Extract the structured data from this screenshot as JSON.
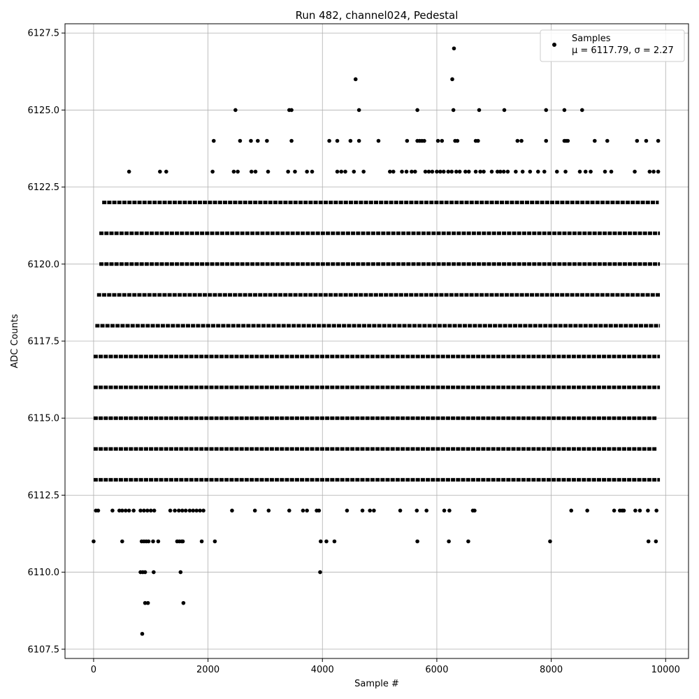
{
  "chart_data": {
    "type": "scatter",
    "title": "Run 482, channel024, Pedestal",
    "xlabel": "Sample #",
    "ylabel": "ADC Counts",
    "xlim": [
      -500,
      10400
    ],
    "ylim": [
      6107.2,
      6127.8
    ],
    "x_ticks": [
      0,
      2000,
      4000,
      6000,
      8000,
      10000
    ],
    "y_ticks": [
      6107.5,
      6110.0,
      6112.5,
      6115.0,
      6117.5,
      6120.0,
      6122.5,
      6125.0,
      6127.5
    ],
    "x_tick_labels": [
      "0",
      "2000",
      "4000",
      "6000",
      "8000",
      "10000"
    ],
    "y_tick_labels": [
      "6107.5",
      "6110.0",
      "6112.5",
      "6115.0",
      "6117.5",
      "6120.0",
      "6122.5",
      "6125.0",
      "6127.5"
    ],
    "grid": true,
    "legend_position": "top-right",
    "marker_color": "#000000",
    "series": [
      {
        "name": "Samples",
        "stats_label": "μ = 6117.79, σ = 2.27",
        "bands": [
          {
            "y": 6116,
            "x_range": [
              0,
              9900
            ]
          },
          {
            "y": 6117,
            "x_range": [
              0,
              9900
            ]
          },
          {
            "y": 6118,
            "x_range": [
              30,
              9900
            ]
          },
          {
            "y": 6119,
            "x_range": [
              60,
              9900
            ]
          },
          {
            "y": 6115,
            "x_range": [
              0,
              9850
            ]
          },
          {
            "y": 6120,
            "x_range": [
              100,
              9900
            ]
          },
          {
            "y": 6114,
            "x_range": [
              0,
              9850
            ]
          },
          {
            "y": 6121,
            "x_range": [
              100,
              9900
            ]
          },
          {
            "y": 6113,
            "x_range": [
              0,
              9900
            ]
          },
          {
            "y": 6122,
            "x_range": [
              150,
              9880
            ]
          }
        ],
        "points": [
          [
            0,
            6111
          ],
          [
            500,
            6111
          ],
          [
            840,
            6111
          ],
          [
            880,
            6111
          ],
          [
            920,
            6111
          ],
          [
            960,
            6111
          ],
          [
            1040,
            6111
          ],
          [
            1130,
            6111
          ],
          [
            1460,
            6111
          ],
          [
            1500,
            6111
          ],
          [
            1540,
            6111
          ],
          [
            1560,
            6111
          ],
          [
            1890,
            6111
          ],
          [
            2120,
            6111
          ],
          [
            3970,
            6111
          ],
          [
            4070,
            6111
          ],
          [
            4210,
            6111
          ],
          [
            5660,
            6111
          ],
          [
            6210,
            6111
          ],
          [
            6550,
            6111
          ],
          [
            7980,
            6111
          ],
          [
            9700,
            6111
          ],
          [
            9830,
            6111
          ],
          [
            820,
            6110
          ],
          [
            860,
            6110
          ],
          [
            900,
            6110
          ],
          [
            1050,
            6110
          ],
          [
            1520,
            6110
          ],
          [
            3960,
            6110
          ],
          [
            900,
            6109
          ],
          [
            950,
            6109
          ],
          [
            1570,
            6109
          ],
          [
            850,
            6108
          ],
          [
            40,
            6112
          ],
          [
            80,
            6112
          ],
          [
            330,
            6112
          ],
          [
            450,
            6112
          ],
          [
            500,
            6112
          ],
          [
            560,
            6112
          ],
          [
            620,
            6112
          ],
          [
            700,
            6112
          ],
          [
            820,
            6112
          ],
          [
            880,
            6112
          ],
          [
            940,
            6112
          ],
          [
            1000,
            6112
          ],
          [
            1060,
            6112
          ],
          [
            1340,
            6112
          ],
          [
            1420,
            6112
          ],
          [
            1490,
            6112
          ],
          [
            1550,
            6112
          ],
          [
            1610,
            6112
          ],
          [
            1680,
            6112
          ],
          [
            1740,
            6112
          ],
          [
            1800,
            6112
          ],
          [
            1860,
            6112
          ],
          [
            1920,
            6112
          ],
          [
            2420,
            6112
          ],
          [
            2820,
            6112
          ],
          [
            3060,
            6112
          ],
          [
            3420,
            6112
          ],
          [
            3660,
            6112
          ],
          [
            3730,
            6112
          ],
          [
            3900,
            6112
          ],
          [
            3940,
            6112
          ],
          [
            4430,
            6112
          ],
          [
            4700,
            6112
          ],
          [
            4830,
            6112
          ],
          [
            4900,
            6112
          ],
          [
            5360,
            6112
          ],
          [
            5650,
            6112
          ],
          [
            5820,
            6112
          ],
          [
            6130,
            6112
          ],
          [
            6220,
            6112
          ],
          [
            6630,
            6112
          ],
          [
            6660,
            6112
          ],
          [
            8350,
            6112
          ],
          [
            8630,
            6112
          ],
          [
            9100,
            6112
          ],
          [
            9200,
            6112
          ],
          [
            9240,
            6112
          ],
          [
            9270,
            6112
          ],
          [
            9470,
            6112
          ],
          [
            9550,
            6112
          ],
          [
            9690,
            6112
          ],
          [
            9840,
            6112
          ],
          [
            620,
            6123
          ],
          [
            1160,
            6123
          ],
          [
            1270,
            6123
          ],
          [
            2080,
            6123
          ],
          [
            2450,
            6123
          ],
          [
            2520,
            6123
          ],
          [
            2760,
            6123
          ],
          [
            2830,
            6123
          ],
          [
            3050,
            6123
          ],
          [
            3400,
            6123
          ],
          [
            3520,
            6123
          ],
          [
            3730,
            6123
          ],
          [
            3820,
            6123
          ],
          [
            4260,
            6123
          ],
          [
            4330,
            6123
          ],
          [
            4400,
            6123
          ],
          [
            4550,
            6123
          ],
          [
            4720,
            6123
          ],
          [
            5180,
            6123
          ],
          [
            5240,
            6123
          ],
          [
            5390,
            6123
          ],
          [
            5470,
            6123
          ],
          [
            5560,
            6123
          ],
          [
            5620,
            6123
          ],
          [
            5800,
            6123
          ],
          [
            5860,
            6123
          ],
          [
            5920,
            6123
          ],
          [
            6000,
            6123
          ],
          [
            6060,
            6123
          ],
          [
            6120,
            6123
          ],
          [
            6200,
            6123
          ],
          [
            6260,
            6123
          ],
          [
            6340,
            6123
          ],
          [
            6400,
            6123
          ],
          [
            6500,
            6123
          ],
          [
            6560,
            6123
          ],
          [
            6680,
            6123
          ],
          [
            6760,
            6123
          ],
          [
            6820,
            6123
          ],
          [
            6960,
            6123
          ],
          [
            7060,
            6123
          ],
          [
            7110,
            6123
          ],
          [
            7170,
            6123
          ],
          [
            7240,
            6123
          ],
          [
            7380,
            6123
          ],
          [
            7500,
            6123
          ],
          [
            7630,
            6123
          ],
          [
            7770,
            6123
          ],
          [
            7880,
            6123
          ],
          [
            8100,
            6123
          ],
          [
            8250,
            6123
          ],
          [
            8500,
            6123
          ],
          [
            8600,
            6123
          ],
          [
            8690,
            6123
          ],
          [
            8940,
            6123
          ],
          [
            9050,
            6123
          ],
          [
            9460,
            6123
          ],
          [
            9720,
            6123
          ],
          [
            9790,
            6123
          ],
          [
            9870,
            6123
          ],
          [
            2100,
            6124
          ],
          [
            2560,
            6124
          ],
          [
            2750,
            6124
          ],
          [
            2870,
            6124
          ],
          [
            3030,
            6124
          ],
          [
            3460,
            6124
          ],
          [
            4120,
            6124
          ],
          [
            4260,
            6124
          ],
          [
            4490,
            6124
          ],
          [
            4640,
            6124
          ],
          [
            4980,
            6124
          ],
          [
            5480,
            6124
          ],
          [
            5660,
            6124
          ],
          [
            5700,
            6124
          ],
          [
            5740,
            6124
          ],
          [
            5780,
            6124
          ],
          [
            6020,
            6124
          ],
          [
            6090,
            6124
          ],
          [
            6320,
            6124
          ],
          [
            6360,
            6124
          ],
          [
            6680,
            6124
          ],
          [
            6720,
            6124
          ],
          [
            7410,
            6124
          ],
          [
            7480,
            6124
          ],
          [
            7910,
            6124
          ],
          [
            8230,
            6124
          ],
          [
            8260,
            6124
          ],
          [
            8290,
            6124
          ],
          [
            8760,
            6124
          ],
          [
            8980,
            6124
          ],
          [
            9500,
            6124
          ],
          [
            9660,
            6124
          ],
          [
            9870,
            6124
          ],
          [
            2480,
            6125
          ],
          [
            3420,
            6125
          ],
          [
            3460,
            6125
          ],
          [
            4640,
            6125
          ],
          [
            5660,
            6125
          ],
          [
            6290,
            6125
          ],
          [
            6740,
            6125
          ],
          [
            7180,
            6125
          ],
          [
            7910,
            6125
          ],
          [
            8230,
            6125
          ],
          [
            8540,
            6125
          ],
          [
            4580,
            6126
          ],
          [
            6270,
            6126
          ],
          [
            6300,
            6127
          ]
        ]
      }
    ]
  }
}
